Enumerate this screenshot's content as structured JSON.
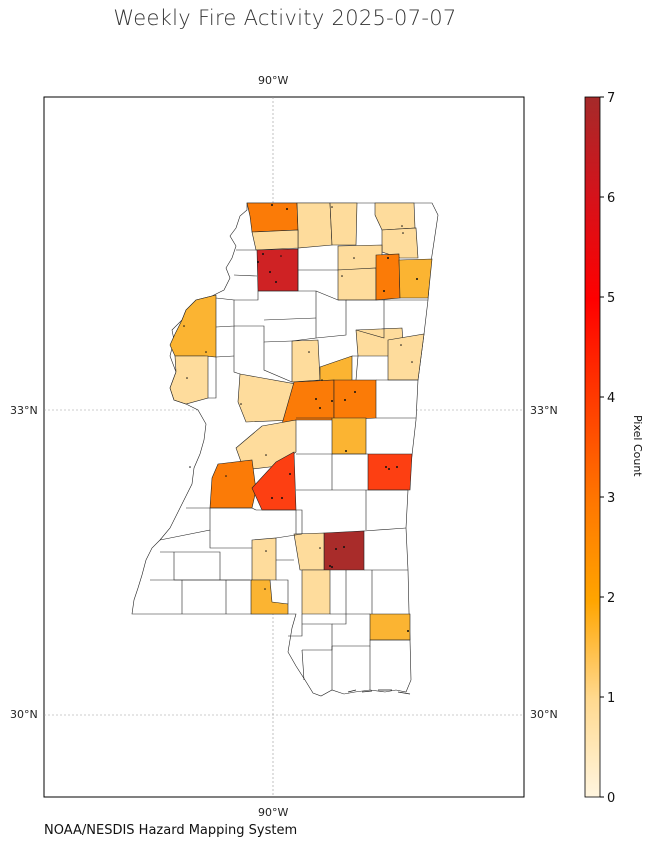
{
  "title": "Weekly Fire Activity 2025-07-07",
  "credit": "NOAA/NESDIS Hazard Mapping System",
  "axis_labels": {
    "lon_top": "90°W",
    "lon_bottom": "90°W",
    "lat_33_left": "33°N",
    "lat_33_right": "33°N",
    "lat_30_left": "30°N",
    "lat_30_right": "30°N"
  },
  "colorbar": {
    "label": "Pixel Count",
    "ticks": [
      "0",
      "1",
      "2",
      "3",
      "4",
      "5",
      "6",
      "7"
    ],
    "colors": [
      "#fff5df",
      "#ffd98f",
      "#ffa500",
      "#ff7400",
      "#ff3a00",
      "#ff0000",
      "#d4131b",
      "#a52a2a"
    ]
  },
  "legend_colors": {
    "c1": "#fedc9c",
    "c2": "#fbb432",
    "c3": "#fb7b07",
    "c35": "#fd3f12",
    "c6": "#cf2224",
    "c7": "#a92c2a",
    "border": "#222222"
  }
}
